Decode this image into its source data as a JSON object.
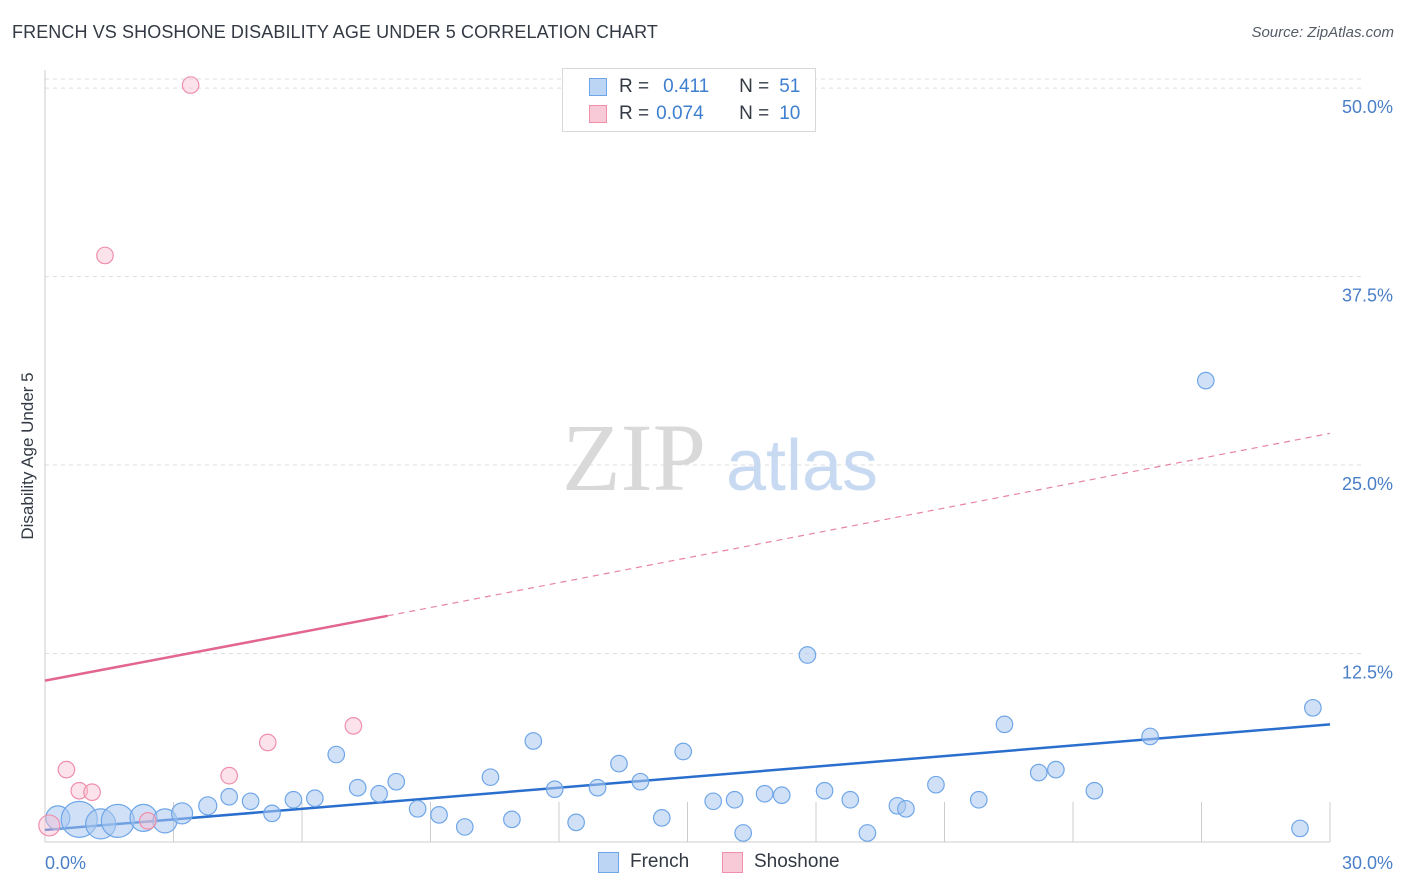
{
  "title": "FRENCH VS SHOSHONE DISABILITY AGE UNDER 5 CORRELATION CHART",
  "source": "Source: ZipAtlas.com",
  "watermark": {
    "zip": "ZIP",
    "atlas": "atlas"
  },
  "legend": {
    "french": {
      "r_label": "R =",
      "r_value": "0.411",
      "n_label": "N =",
      "n_value": "51"
    },
    "shoshone": {
      "r_label": "R =",
      "r_value": "0.074",
      "n_label": "N =",
      "n_value": "10"
    }
  },
  "chart_data": {
    "type": "scatter",
    "title": "FRENCH VS SHOSHONE DISABILITY AGE UNDER 5 CORRELATION CHART",
    "xlabel": "",
    "ylabel": "Disability Age Under 5",
    "xlim": [
      0,
      30
    ],
    "ylim": [
      0,
      51.2
    ],
    "x_tick_labels": [
      "0.0%",
      "30.0%"
    ],
    "y_ticks": [
      12.5,
      25.0,
      37.5,
      50.0
    ],
    "y_tick_labels": [
      "12.5%",
      "25.0%",
      "37.5%",
      "50.0%"
    ],
    "grid": true,
    "colors": {
      "french": "#6fa6e8",
      "shoshone": "#ef8fab",
      "french_line": "#2b6fce",
      "shoshone_line": "#e2668f",
      "tick": "#4a7fc8"
    },
    "series": [
      {
        "name": "French",
        "points": [
          {
            "x": 0.3,
            "y": 1.6,
            "s": 16
          },
          {
            "x": 0.8,
            "y": 1.5,
            "s": 24
          },
          {
            "x": 1.3,
            "y": 1.2,
            "s": 20
          },
          {
            "x": 1.7,
            "y": 1.4,
            "s": 22
          },
          {
            "x": 2.3,
            "y": 1.6,
            "s": 18
          },
          {
            "x": 2.8,
            "y": 1.4,
            "s": 16
          },
          {
            "x": 3.2,
            "y": 1.9,
            "s": 14
          },
          {
            "x": 3.8,
            "y": 2.4,
            "s": 12
          },
          {
            "x": 4.3,
            "y": 3.0,
            "s": 11
          },
          {
            "x": 4.8,
            "y": 2.7,
            "s": 11
          },
          {
            "x": 5.3,
            "y": 1.9,
            "s": 11
          },
          {
            "x": 5.8,
            "y": 2.8,
            "s": 11
          },
          {
            "x": 6.3,
            "y": 2.9,
            "s": 11
          },
          {
            "x": 6.8,
            "y": 5.8,
            "s": 11
          },
          {
            "x": 7.3,
            "y": 3.6,
            "s": 11
          },
          {
            "x": 7.8,
            "y": 3.2,
            "s": 11
          },
          {
            "x": 8.2,
            "y": 4.0,
            "s": 11
          },
          {
            "x": 8.7,
            "y": 2.2,
            "s": 11
          },
          {
            "x": 9.2,
            "y": 1.8,
            "s": 11
          },
          {
            "x": 9.8,
            "y": 1.0,
            "s": 11
          },
          {
            "x": 10.4,
            "y": 4.3,
            "s": 11
          },
          {
            "x": 10.9,
            "y": 1.5,
            "s": 11
          },
          {
            "x": 11.4,
            "y": 6.7,
            "s": 11
          },
          {
            "x": 11.9,
            "y": 3.5,
            "s": 11
          },
          {
            "x": 12.4,
            "y": 1.3,
            "s": 11
          },
          {
            "x": 12.9,
            "y": 3.6,
            "s": 11
          },
          {
            "x": 13.4,
            "y": 5.2,
            "s": 11
          },
          {
            "x": 13.9,
            "y": 4.0,
            "s": 11
          },
          {
            "x": 14.4,
            "y": 1.6,
            "s": 11
          },
          {
            "x": 14.9,
            "y": 6.0,
            "s": 11
          },
          {
            "x": 15.6,
            "y": 2.7,
            "s": 11
          },
          {
            "x": 16.1,
            "y": 2.8,
            "s": 11
          },
          {
            "x": 16.3,
            "y": 0.6,
            "s": 11
          },
          {
            "x": 16.8,
            "y": 3.2,
            "s": 11
          },
          {
            "x": 17.2,
            "y": 3.1,
            "s": 11
          },
          {
            "x": 17.8,
            "y": 12.4,
            "s": 11
          },
          {
            "x": 18.2,
            "y": 3.4,
            "s": 11
          },
          {
            "x": 18.8,
            "y": 2.8,
            "s": 11
          },
          {
            "x": 19.2,
            "y": 0.6,
            "s": 11
          },
          {
            "x": 19.9,
            "y": 2.4,
            "s": 11
          },
          {
            "x": 20.1,
            "y": 2.2,
            "s": 11
          },
          {
            "x": 20.8,
            "y": 3.8,
            "s": 11
          },
          {
            "x": 21.8,
            "y": 2.8,
            "s": 11
          },
          {
            "x": 22.4,
            "y": 7.8,
            "s": 11
          },
          {
            "x": 23.2,
            "y": 4.6,
            "s": 11
          },
          {
            "x": 23.6,
            "y": 4.8,
            "s": 11
          },
          {
            "x": 24.5,
            "y": 3.4,
            "s": 11
          },
          {
            "x": 25.8,
            "y": 7.0,
            "s": 11
          },
          {
            "x": 27.1,
            "y": 30.6,
            "s": 11
          },
          {
            "x": 29.3,
            "y": 0.9,
            "s": 11
          },
          {
            "x": 29.6,
            "y": 8.9,
            "s": 11
          }
        ],
        "trend": {
          "x0": 0,
          "y0": 0.8,
          "x1": 30,
          "y1": 7.8,
          "style": "solid"
        }
      },
      {
        "name": "Shoshone",
        "points": [
          {
            "x": 0.1,
            "y": 1.1,
            "s": 14
          },
          {
            "x": 0.5,
            "y": 4.8,
            "s": 11
          },
          {
            "x": 0.8,
            "y": 3.4,
            "s": 11
          },
          {
            "x": 1.1,
            "y": 3.3,
            "s": 11
          },
          {
            "x": 1.4,
            "y": 38.9,
            "s": 11
          },
          {
            "x": 2.4,
            "y": 1.4,
            "s": 11
          },
          {
            "x": 3.4,
            "y": 50.2,
            "s": 11
          },
          {
            "x": 4.3,
            "y": 4.4,
            "s": 11
          },
          {
            "x": 5.2,
            "y": 6.6,
            "s": 11
          },
          {
            "x": 7.2,
            "y": 7.7,
            "s": 11
          }
        ],
        "trend": {
          "x0": 0,
          "y0": 10.7,
          "x1": 8,
          "y1": 15.0,
          "x_end_dashed": 30,
          "y_end_dashed": 27.1,
          "style": "solid-then-dashed"
        }
      }
    ]
  },
  "bottom_legend": {
    "french": "French",
    "shoshone": "Shoshone"
  }
}
